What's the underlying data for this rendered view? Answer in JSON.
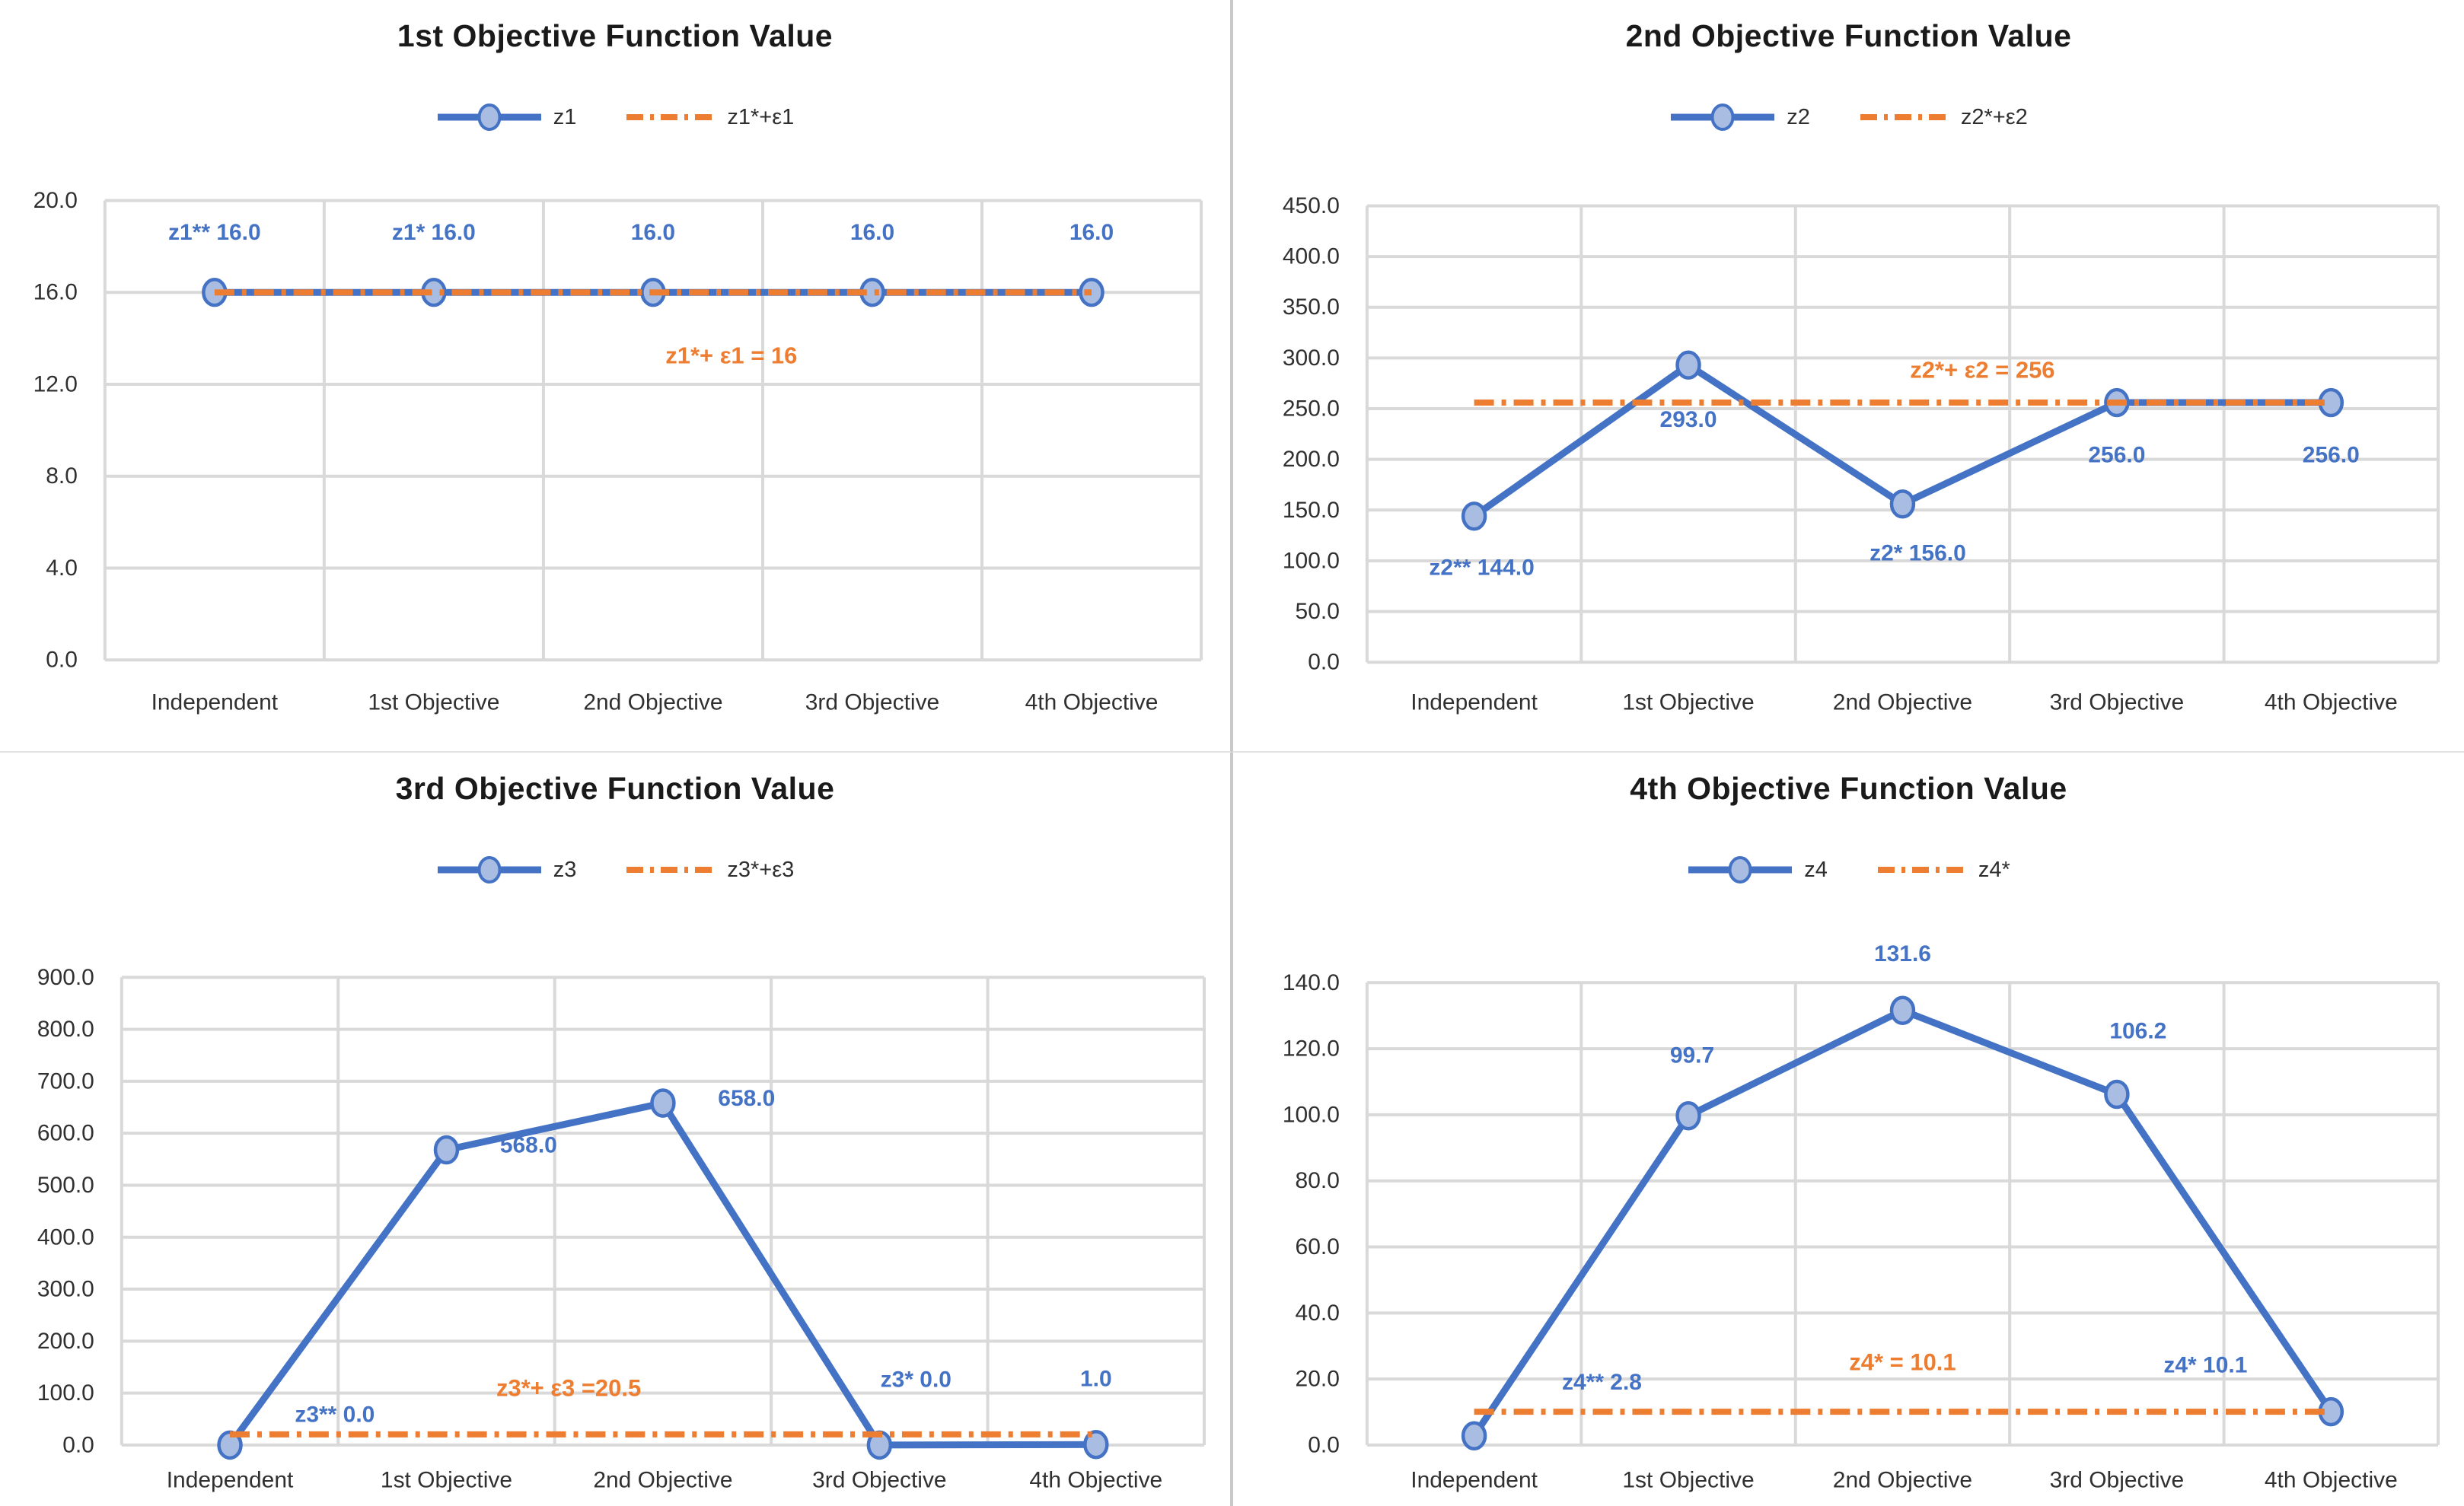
{
  "colors": {
    "series": "#4472C4",
    "marker_fill": "#A9BCE2",
    "reference": "#ED7D31",
    "grid": "#D9D9D9",
    "axis_text": "#303030",
    "title_text": "#1A1A1A",
    "legend_text": "#2E2E2E"
  },
  "charts": [
    {
      "title": "1st Objective Function Value",
      "legend": [
        {
          "label": "z1",
          "type": "line-marker"
        },
        {
          "label": "z1*+ε1",
          "type": "dash-dot"
        }
      ],
      "chart_data": {
        "type": "line",
        "categories": [
          "Independent",
          "1st Objective",
          "2nd Objective",
          "3rd Objective",
          "4th Objective"
        ],
        "series": [
          {
            "name": "z1",
            "values": [
              16.0,
              16.0,
              16.0,
              16.0,
              16.0
            ],
            "point_labels": [
              "z1** 16.0",
              "z1* 16.0",
              "16.0",
              "16.0",
              "16.0"
            ],
            "label_offsets": [
              [
                0,
                -79
              ],
              [
                0,
                -79
              ],
              [
                0,
                -79
              ],
              [
                0,
                -79
              ],
              [
                0,
                -79
              ]
            ]
          }
        ],
        "reference_line": {
          "name": "z1*+ε1",
          "value": 16
        },
        "annotation": {
          "text": "z1*+ ε1 = 16",
          "x": 962,
          "y": 468
        },
        "ylim": [
          0,
          20
        ],
        "ytick_step": 4,
        "grid": true,
        "legend_position": "top"
      }
    },
    {
      "title": "2nd Objective Function Value",
      "legend": [
        {
          "label": "z2",
          "type": "line-marker"
        },
        {
          "label": "z2*+ε2",
          "type": "dash-dot"
        }
      ],
      "chart_data": {
        "type": "line",
        "categories": [
          "Independent",
          "1st Objective",
          "2nd Objective",
          "3rd Objective",
          "4th Objective"
        ],
        "series": [
          {
            "name": "z2",
            "values": [
              144.0,
              293.0,
              156.0,
              256.0,
              256.0
            ],
            "point_labels": [
              "z2** 144.0",
              "293.0",
              "z2* 156.0",
              "256.0",
              "256.0"
            ],
            "label_offsets": [
              [
                10,
                68
              ],
              [
                0,
                72
              ],
              [
                20,
                65
              ],
              [
                0,
                69
              ],
              [
                0,
                69
              ]
            ]
          }
        ],
        "reference_line": {
          "name": "z2*+ε2",
          "value": 256
        },
        "annotation": {
          "text": "z2*+ ε2 = 256",
          "x": 985,
          "y": 487
        },
        "ylim": [
          0,
          450
        ],
        "ytick_step": 50,
        "grid": true,
        "legend_position": "top"
      }
    },
    {
      "title": "3rd Objective Function Value",
      "legend": [
        {
          "label": "z3",
          "type": "line-marker"
        },
        {
          "label": "z3*+ε3",
          "type": "dash-dot"
        }
      ],
      "chart_data": {
        "type": "line",
        "categories": [
          "Independent",
          "1st Objective",
          "2nd Objective",
          "3rd Objective",
          "4th Objective"
        ],
        "series": [
          {
            "name": "z3",
            "values": [
              0.0,
              568.0,
              658.0,
              0.0,
              1.0
            ],
            "point_labels": [
              "z3** 0.0",
              "568.0",
              "658.0",
              "z3* 0.0",
              "1.0"
            ],
            "label_offsets": [
              [
                138,
                -40
              ],
              [
                108,
                -6
              ],
              [
                110,
                -6
              ],
              [
                48,
                -86
              ],
              [
                0,
                -86
              ]
            ]
          }
        ],
        "reference_line": {
          "name": "z3*+ε3",
          "value": 20.5
        },
        "annotation": {
          "text": "z3*+ ε3 =20.5",
          "x": 748,
          "y": 834
        },
        "ylim": [
          0,
          900
        ],
        "ytick_step": 100,
        "grid": true,
        "legend_position": "top"
      }
    },
    {
      "title": "4th Objective Function Value",
      "legend": [
        {
          "label": "z4",
          "type": "line-marker"
        },
        {
          "label": "z4*",
          "type": "dash-dot"
        }
      ],
      "chart_data": {
        "type": "line",
        "categories": [
          "Independent",
          "1st Objective",
          "2nd Objective",
          "3rd Objective",
          "4th Objective"
        ],
        "series": [
          {
            "name": "z4",
            "values": [
              2.8,
              99.7,
              131.6,
              106.2,
              10.1
            ],
            "point_labels": [
              "z4** 2.8",
              "99.7",
              "131.6",
              "106.2",
              "z4* 10.1"
            ],
            "label_offsets": [
              [
                168,
                -70
              ],
              [
                5,
                -79
              ],
              [
                0,
                -74
              ],
              [
                28,
                -83
              ],
              [
                -165,
                -61
              ]
            ]
          }
        ],
        "reference_line": {
          "name": "z4*",
          "value": 10.1
        },
        "annotation": {
          "text": "z4* = 10.1",
          "x": 880,
          "y": 800
        },
        "ylim": [
          0,
          140
        ],
        "ytick_step": 20,
        "grid": true,
        "legend_position": "top"
      }
    }
  ]
}
